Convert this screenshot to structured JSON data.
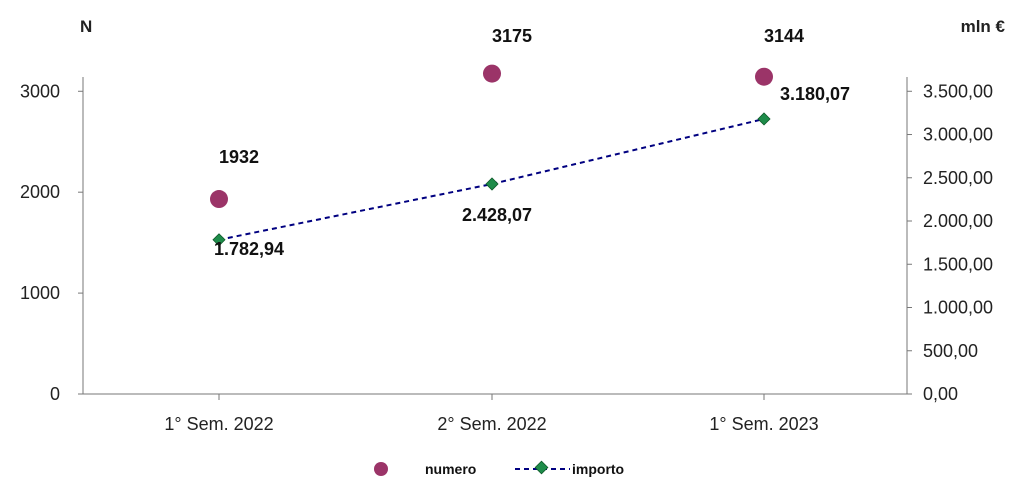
{
  "chart_data": {
    "type": "line",
    "categories": [
      "1° Sem. 2022",
      "2° Sem. 2022",
      "1° Sem. 2023"
    ],
    "left_axis": {
      "label": "N",
      "ticks": [
        "0",
        "1000",
        "2000",
        "3000"
      ],
      "tick_values": [
        0,
        1000,
        2000,
        3000
      ],
      "range": [
        0,
        3000
      ]
    },
    "right_axis": {
      "label": "mln €",
      "ticks": [
        "0,00",
        "500,00",
        "1.000,00",
        "1.500,00",
        "2.000,00",
        "2.500,00",
        "3.000,00",
        "3.500,00"
      ],
      "tick_values": [
        0,
        500,
        1000,
        1500,
        2000,
        2500,
        3000,
        3500
      ],
      "range": [
        0,
        3500
      ]
    },
    "series": [
      {
        "name": "numero",
        "type": "scatter",
        "axis": "left",
        "values": [
          1932,
          3175,
          3144
        ],
        "labels": [
          "1932",
          "3175",
          "3144"
        ],
        "color": "#9b3468"
      },
      {
        "name": "importo",
        "type": "line",
        "axis": "right",
        "values": [
          1782.94,
          2428.07,
          3180.07
        ],
        "labels": [
          "1.782,94",
          "2.428,07",
          "3.180,07"
        ],
        "color": "#000080",
        "marker_color": "#1e8c4a",
        "line_style": "dashed"
      }
    ],
    "grid": false,
    "legend_position": "bottom"
  }
}
